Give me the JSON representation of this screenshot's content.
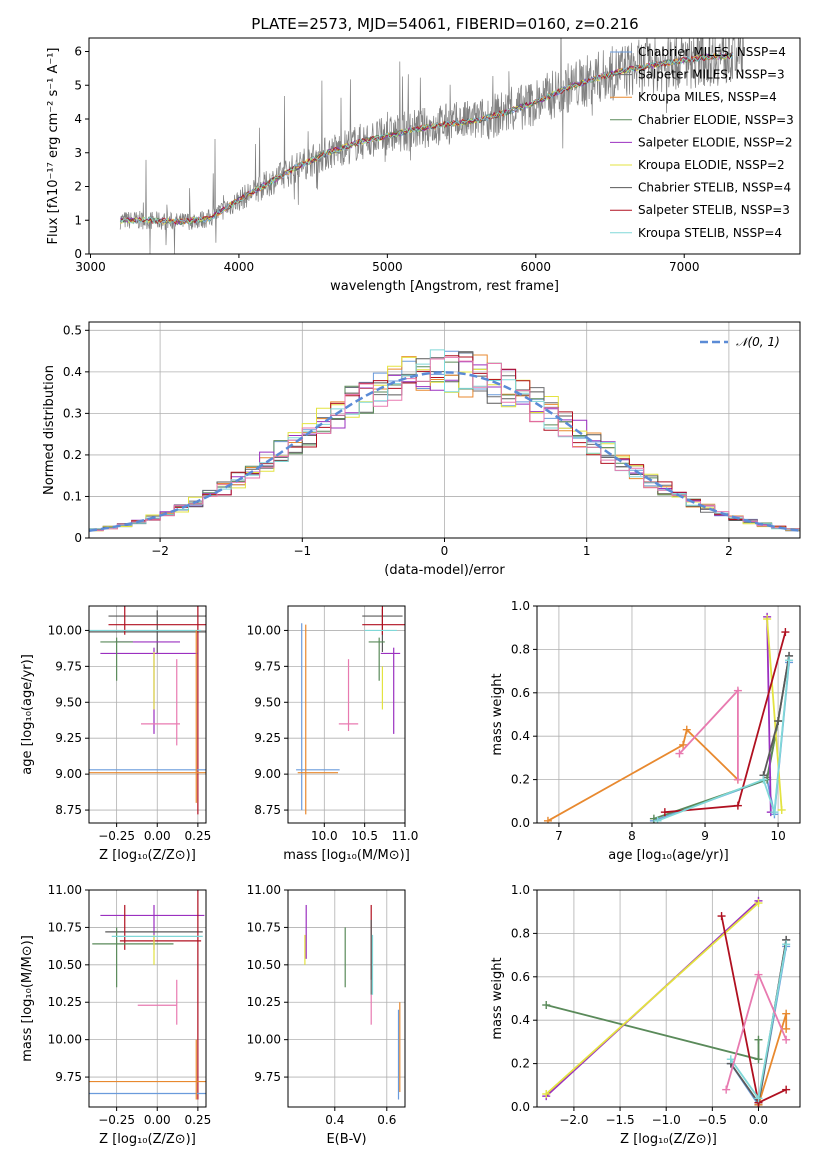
{
  "figure_title": "PLATE=2573, MJD=54061, FIBERID=0160, z=0.216",
  "colors": {
    "chabrier_miles": "#6a9bdc",
    "salpeter_miles": "#6d6e71",
    "kroupa_miles": "#e8892f",
    "chabrier_elodie": "#5a8a5a",
    "salpeter_elodie": "#9b30c0",
    "kroupa_elodie": "#e3e340",
    "chabrier_stelib": "#5a5a5a",
    "salpeter_stelib": "#b01020",
    "kroupa_stelib": "#80d8d8",
    "pink": "#e87ab0",
    "normal_curve": "#5b8bd6",
    "observed": "#808080",
    "grid": "#b0b0b0"
  },
  "chart_data": [
    {
      "id": "spectrum",
      "type": "line",
      "title": "PLATE=2573, MJD=54061, FIBERID=0160, z=0.216",
      "xlabel": "wavelength [Angstrom, rest frame]",
      "ylabel": "Flux [fλ10⁻¹⁷ erg cm⁻² s⁻¹ A⁻¹]",
      "xlim": [
        2990,
        7780
      ],
      "ylim": [
        0,
        6.4
      ],
      "xticks": [
        3000,
        4000,
        5000,
        6000,
        7000
      ],
      "yticks": [
        0,
        1,
        2,
        3,
        4,
        5,
        6
      ],
      "grid": false,
      "legend_position": "top-right",
      "legend": [
        "Chabrier MILES, N_SSP=4",
        "Salpeter MILES, N_SSP=3",
        "Kroupa MILES, N_SSP=4",
        "Chabrier ELODIE, N_SSP=3",
        "Salpeter ELODIE, N_SSP=2",
        "Kroupa ELODIE, N_SSP=2",
        "Chabrier STELIB, N_SSP=4",
        "Salpeter STELIB, N_SSP=3",
        "Kroupa STELIB, N_SSP=4"
      ],
      "continuum": {
        "x": [
          3200,
          3400,
          3600,
          3800,
          4000,
          4200,
          4400,
          4600,
          4800,
          5000,
          5200,
          5400,
          5600,
          5800,
          6000,
          6200,
          6400,
          6600,
          6800,
          7000,
          7200,
          7400
        ],
        "y": [
          1.0,
          1.0,
          0.95,
          1.05,
          1.6,
          2.1,
          2.6,
          3.0,
          3.3,
          3.5,
          3.7,
          3.85,
          3.95,
          4.2,
          4.5,
          4.9,
          5.2,
          5.45,
          5.6,
          5.75,
          5.85,
          5.9
        ]
      },
      "data_range": [
        3200,
        7400
      ]
    },
    {
      "id": "residual-histogram",
      "type": "line",
      "xlabel": "(data-model)/error",
      "ylabel": "Normed distribution",
      "xlim": [
        -2.5,
        2.5
      ],
      "ylim": [
        0,
        0.52
      ],
      "xticks": [
        -2,
        -1,
        0,
        1,
        2
      ],
      "yticks": [
        0.0,
        0.1,
        0.2,
        0.3,
        0.4,
        0.5
      ],
      "grid": true,
      "legend_position": "top-right",
      "legend": [
        "𝒩(0, 1)"
      ],
      "bin_width": 0.1
    },
    {
      "id": "age-vs-metallicity",
      "type": "scatter",
      "xlabel": "Z [log₁₀(Z/Z⊙)]",
      "ylabel": "age  [log₁₀(age/yr)]",
      "xlim": [
        -0.42,
        0.3
      ],
      "ylim": [
        8.66,
        10.17
      ],
      "xticks": [
        -0.25,
        0.0,
        0.25
      ],
      "xticklabels": [
        "−0.25",
        "0.00",
        "0.25"
      ],
      "yticks": [
        8.75,
        9.0,
        9.25,
        9.5,
        9.75,
        10.0
      ],
      "yticklabels": [
        "8.75",
        "9.00",
        "9.25",
        "9.50",
        "9.75",
        "10.00"
      ],
      "grid": true,
      "points": [
        {
          "x": 0.0,
          "y": 9.99,
          "xerr": 0.45,
          "yerr": 0.15,
          "color": "#5a5a5a"
        },
        {
          "x": 0.0,
          "y": 10.1,
          "xerr": 0.3,
          "yerr": 0.0,
          "color": "#5a5a5a"
        },
        {
          "x": 0.0,
          "y": 10.04,
          "xerr": 0.3,
          "yerr": 0.0,
          "color": "#b01020"
        },
        {
          "x": -0.2,
          "y": 10.07,
          "xerr": 0.0,
          "yerr": 0.1,
          "color": "#b01020"
        },
        {
          "x": 0.25,
          "y": 9.6,
          "xerr": 0.0,
          "yerr": 0.88,
          "color": "#b01020"
        },
        {
          "x": -0.08,
          "y": 10.0,
          "xerr": 0.35,
          "yerr": 0.0,
          "color": "#80d8d8"
        },
        {
          "x": -0.06,
          "y": 9.92,
          "xerr": 0.2,
          "yerr": 0.0,
          "color": "#9b30c0"
        },
        {
          "x": -0.05,
          "y": 9.84,
          "xerr": 0.3,
          "yerr": 0.0,
          "color": "#9b30c0"
        },
        {
          "x": -0.02,
          "y": 9.58,
          "xerr": 0.0,
          "yerr": 0.3,
          "color": "#9b30c0"
        },
        {
          "x": -0.25,
          "y": 9.8,
          "xerr": 0.0,
          "yerr": 0.15,
          "color": "#5a8a5a"
        },
        {
          "x": -0.25,
          "y": 9.92,
          "xerr": 0.1,
          "yerr": 0.0,
          "color": "#5a8a5a"
        },
        {
          "x": -0.02,
          "y": 9.65,
          "xerr": 0.0,
          "yerr": 0.2,
          "color": "#e3e340"
        },
        {
          "x": 0.02,
          "y": 9.35,
          "xerr": 0.12,
          "yerr": 0.0,
          "color": "#e87ab0"
        },
        {
          "x": 0.12,
          "y": 9.5,
          "xerr": 0.0,
          "yerr": 0.3,
          "color": "#e87ab0"
        },
        {
          "x": 0.0,
          "y": 9.03,
          "xerr": 0.42,
          "yerr": 0.0,
          "color": "#6a9bdc"
        },
        {
          "x": 0.0,
          "y": 9.01,
          "xerr": 0.42,
          "yerr": 0.0,
          "color": "#e8892f"
        },
        {
          "x": 0.24,
          "y": 9.4,
          "xerr": 0.0,
          "yerr": 0.6,
          "color": "#e8892f"
        }
      ]
    },
    {
      "id": "age-vs-mass",
      "type": "scatter",
      "xlabel": "mass [log₁₀(M/M⊙)]",
      "ylabel": "",
      "xlim": [
        9.55,
        11.0
      ],
      "ylim": [
        8.66,
        10.17
      ],
      "xticks": [
        10.0,
        10.5,
        11.0
      ],
      "xticklabels": [
        "10.0",
        "10.5",
        "11.0"
      ],
      "yticks": [
        8.75,
        9.0,
        9.25,
        9.5,
        9.75,
        10.0
      ],
      "yticklabels": [
        "8.75",
        "9.00",
        "9.25",
        "9.50",
        "9.75",
        "10.00"
      ],
      "grid": true,
      "points": [
        {
          "x": 10.72,
          "y": 10.1,
          "xerr": 0.25,
          "yerr": 0.0,
          "color": "#5a5a5a"
        },
        {
          "x": 10.72,
          "y": 10.0,
          "xerr": 0.0,
          "yerr": 0.15,
          "color": "#5a5a5a"
        },
        {
          "x": 10.75,
          "y": 10.04,
          "xerr": 0.28,
          "yerr": 0.0,
          "color": "#b01020"
        },
        {
          "x": 10.72,
          "y": 10.07,
          "xerr": 0.0,
          "yerr": 0.1,
          "color": "#b01020"
        },
        {
          "x": 10.7,
          "y": 10.0,
          "xerr": 0.2,
          "yerr": 0.0,
          "color": "#80d8d8"
        },
        {
          "x": 10.65,
          "y": 9.92,
          "xerr": 0.1,
          "yerr": 0.0,
          "color": "#5a8a5a"
        },
        {
          "x": 10.68,
          "y": 9.8,
          "xerr": 0.0,
          "yerr": 0.15,
          "color": "#5a8a5a"
        },
        {
          "x": 10.82,
          "y": 9.84,
          "xerr": 0.12,
          "yerr": 0.0,
          "color": "#9b30c0"
        },
        {
          "x": 10.86,
          "y": 9.58,
          "xerr": 0.0,
          "yerr": 0.3,
          "color": "#9b30c0"
        },
        {
          "x": 10.72,
          "y": 9.6,
          "xerr": 0.0,
          "yerr": 0.15,
          "color": "#e3e340"
        },
        {
          "x": 10.3,
          "y": 9.35,
          "xerr": 0.12,
          "yerr": 0.0,
          "color": "#e87ab0"
        },
        {
          "x": 10.3,
          "y": 9.55,
          "xerr": 0.0,
          "yerr": 0.25,
          "color": "#e87ab0"
        },
        {
          "x": 9.92,
          "y": 9.03,
          "xerr": 0.27,
          "yerr": 0.0,
          "color": "#6a9bdc"
        },
        {
          "x": 9.72,
          "y": 9.4,
          "xerr": 0.0,
          "yerr": 0.65,
          "color": "#6a9bdc"
        },
        {
          "x": 9.92,
          "y": 9.01,
          "xerr": 0.25,
          "yerr": 0.0,
          "color": "#e8892f"
        },
        {
          "x": 9.77,
          "y": 9.38,
          "xerr": 0.0,
          "yerr": 0.66,
          "color": "#e8892f"
        }
      ]
    },
    {
      "id": "mass-weight-vs-age",
      "type": "line",
      "xlabel": "age  [log₁₀(age/yr)]",
      "ylabel": "mass weight",
      "xlim": [
        6.7,
        10.3
      ],
      "ylim": [
        0,
        1.0
      ],
      "xticks": [
        7,
        8,
        9,
        10
      ],
      "xticklabels": [
        "7",
        "8",
        "9",
        "10"
      ],
      "yticks": [
        0.0,
        0.2,
        0.4,
        0.6,
        0.8,
        1.0
      ],
      "yticklabels": [
        "0.0",
        "0.2",
        "0.4",
        "0.6",
        "0.8",
        "1.0"
      ],
      "grid": true,
      "series": [
        {
          "color": "#6a9bdc",
          "x": [
            8.3,
            9.85,
            9.95,
            10.15
          ],
          "y": [
            0.01,
            0.2,
            0.04,
            0.74
          ]
        },
        {
          "color": "#6d6e71",
          "x": [
            9.85,
            10.0,
            10.15
          ],
          "y": [
            0.21,
            0.47,
            0.77
          ]
        },
        {
          "color": "#e8892f",
          "x": [
            6.85,
            8.7,
            8.75,
            9.45
          ],
          "y": [
            0.01,
            0.36,
            0.43,
            0.2
          ]
        },
        {
          "color": "#5a8a5a",
          "x": [
            8.3,
            9.85,
            10.0
          ],
          "y": [
            0.02,
            0.2,
            0.47
          ]
        },
        {
          "color": "#9b30c0",
          "x": [
            9.85,
            9.9
          ],
          "y": [
            0.95,
            0.05
          ]
        },
        {
          "color": "#e3e340",
          "x": [
            9.85,
            10.05
          ],
          "y": [
            0.94,
            0.06
          ]
        },
        {
          "color": "#5a5a5a",
          "x": [
            9.8,
            10.0,
            10.15
          ],
          "y": [
            0.22,
            0.47,
            0.77
          ]
        },
        {
          "color": "#b01020",
          "x": [
            8.45,
            9.45,
            10.1
          ],
          "y": [
            0.05,
            0.08,
            0.88
          ]
        },
        {
          "color": "#80d8d8",
          "x": [
            8.35,
            9.8,
            9.95,
            10.15
          ],
          "y": [
            0.01,
            0.2,
            0.05,
            0.75
          ]
        },
        {
          "color": "#e87ab0",
          "x": [
            8.65,
            9.45,
            9.45
          ],
          "y": [
            0.32,
            0.61,
            0.2
          ]
        }
      ]
    },
    {
      "id": "mass-vs-metallicity",
      "type": "scatter",
      "xlabel": "Z [log₁₀(Z/Z⊙)]",
      "ylabel": "mass [log₁₀(M/M⊙)]",
      "xlim": [
        -0.42,
        0.3
      ],
      "ylim": [
        9.55,
        11.0
      ],
      "xticks": [
        -0.25,
        0.0,
        0.25
      ],
      "xticklabels": [
        "−0.25",
        "0.00",
        "0.25"
      ],
      "yticks": [
        9.75,
        10.0,
        10.25,
        10.5,
        10.75,
        11.0
      ],
      "yticklabels": [
        "9.75",
        "10.00",
        "10.25",
        "10.50",
        "10.75",
        "11.00"
      ],
      "grid": true,
      "points": [
        {
          "x": -0.03,
          "y": 10.83,
          "xerr": 0.32,
          "yerr": 0.0,
          "color": "#9b30c0"
        },
        {
          "x": -0.02,
          "y": 10.75,
          "xerr": 0.0,
          "yerr": 0.15,
          "color": "#9b30c0"
        },
        {
          "x": -0.02,
          "y": 10.72,
          "xerr": 0.3,
          "yerr": 0.0,
          "color": "#5a5a5a"
        },
        {
          "x": -0.2,
          "y": 10.75,
          "xerr": 0.0,
          "yerr": 0.15,
          "color": "#b01020"
        },
        {
          "x": 0.02,
          "y": 10.66,
          "xerr": 0.25,
          "yerr": 0.0,
          "color": "#b01020"
        },
        {
          "x": 0.25,
          "y": 10.3,
          "xerr": 0.0,
          "yerr": 0.7,
          "color": "#b01020"
        },
        {
          "x": -0.15,
          "y": 10.64,
          "xerr": 0.25,
          "yerr": 0.0,
          "color": "#5a8a5a"
        },
        {
          "x": -0.25,
          "y": 10.55,
          "xerr": 0.0,
          "yerr": 0.2,
          "color": "#5a8a5a"
        },
        {
          "x": -0.02,
          "y": 10.6,
          "xerr": 0.0,
          "yerr": 0.1,
          "color": "#e3e340"
        },
        {
          "x": 0.0,
          "y": 10.69,
          "xerr": 0.28,
          "yerr": 0.0,
          "color": "#80d8d8"
        },
        {
          "x": 0.0,
          "y": 10.23,
          "xerr": 0.12,
          "yerr": 0.0,
          "color": "#e87ab0"
        },
        {
          "x": 0.12,
          "y": 10.25,
          "xerr": 0.0,
          "yerr": 0.15,
          "color": "#e87ab0"
        },
        {
          "x": 0.0,
          "y": 9.72,
          "xerr": 0.42,
          "yerr": 0.0,
          "color": "#e8892f"
        },
        {
          "x": 0.0,
          "y": 9.64,
          "xerr": 0.42,
          "yerr": 0.0,
          "color": "#6a9bdc"
        },
        {
          "x": 0.24,
          "y": 9.8,
          "xerr": 0.0,
          "yerr": 0.2,
          "color": "#e8892f"
        }
      ]
    },
    {
      "id": "mass-vs-ebv",
      "type": "scatter",
      "xlabel": "E(B-V)",
      "ylabel": "",
      "xlim": [
        0.22,
        0.67
      ],
      "ylim": [
        9.55,
        11.0
      ],
      "xticks": [
        0.4,
        0.6
      ],
      "xticklabels": [
        "0.4",
        "0.6"
      ],
      "yticks": [
        9.75,
        10.0,
        10.25,
        10.5,
        10.75,
        11.0
      ],
      "yticklabels": [
        "9.75",
        "10.00",
        "10.25",
        "10.50",
        "10.75",
        "11.00"
      ],
      "grid": true,
      "points": [
        {
          "x": 0.29,
          "y": 10.72,
          "xerr": 0.0,
          "yerr": 0.18,
          "color": "#9b30c0"
        },
        {
          "x": 0.285,
          "y": 10.6,
          "xerr": 0.0,
          "yerr": 0.1,
          "color": "#e3e340"
        },
        {
          "x": 0.44,
          "y": 10.55,
          "xerr": 0.0,
          "yerr": 0.2,
          "color": "#5a8a5a"
        },
        {
          "x": 0.54,
          "y": 10.65,
          "xerr": 0.0,
          "yerr": 0.25,
          "color": "#b01020"
        },
        {
          "x": 0.54,
          "y": 10.55,
          "xerr": 0.0,
          "yerr": 0.25,
          "color": "#5a5a5a"
        },
        {
          "x": 0.545,
          "y": 10.5,
          "xerr": 0.0,
          "yerr": 0.2,
          "color": "#80d8d8"
        },
        {
          "x": 0.54,
          "y": 10.2,
          "xerr": 0.0,
          "yerr": 0.1,
          "color": "#e87ab0"
        },
        {
          "x": 0.65,
          "y": 9.95,
          "xerr": 0.0,
          "yerr": 0.3,
          "color": "#e8892f"
        },
        {
          "x": 0.645,
          "y": 9.9,
          "xerr": 0.0,
          "yerr": 0.3,
          "color": "#6a9bdc"
        }
      ]
    },
    {
      "id": "mass-weight-vs-metallicity",
      "type": "line",
      "xlabel": "Z [log₁₀(Z/Z⊙)]",
      "ylabel": "mass weight",
      "xlim": [
        -2.4,
        0.45
      ],
      "ylim": [
        0,
        1.0
      ],
      "xticks": [
        -2.0,
        -1.5,
        -1.0,
        -0.5,
        0.0
      ],
      "xticklabels": [
        "−2.0",
        "−1.5",
        "−1.0",
        "−0.5",
        "0.0"
      ],
      "yticks": [
        0.0,
        0.2,
        0.4,
        0.6,
        0.8,
        1.0
      ],
      "yticklabels": [
        "0.0",
        "0.2",
        "0.4",
        "0.6",
        "0.8",
        "1.0"
      ],
      "grid": true,
      "series": [
        {
          "color": "#6a9bdc",
          "x": [
            -0.3,
            0.0,
            0.3
          ],
          "y": [
            0.2,
            0.01,
            0.74
          ]
        },
        {
          "color": "#6d6e71",
          "x": [
            0.0,
            0.3
          ],
          "y": [
            0.01,
            0.77
          ]
        },
        {
          "color": "#e8892f",
          "x": [
            0.0,
            0.3,
            0.3
          ],
          "y": [
            0.01,
            0.43,
            0.36
          ]
        },
        {
          "color": "#5a8a5a",
          "x": [
            -2.3,
            0.0,
            0.0
          ],
          "y": [
            0.47,
            0.22,
            0.31
          ]
        },
        {
          "color": "#9b30c0",
          "x": [
            -2.3,
            0.0
          ],
          "y": [
            0.05,
            0.95
          ]
        },
        {
          "color": "#e3e340",
          "x": [
            -2.3,
            0.0
          ],
          "y": [
            0.06,
            0.94
          ]
        },
        {
          "color": "#5a5a5a",
          "x": [
            -0.3,
            0.0,
            0.3
          ],
          "y": [
            0.2,
            0.02,
            0.77
          ]
        },
        {
          "color": "#b01020",
          "x": [
            -0.4,
            0.0,
            0.3
          ],
          "y": [
            0.88,
            0.02,
            0.08
          ]
        },
        {
          "color": "#80d8d8",
          "x": [
            -0.3,
            0.0,
            0.3
          ],
          "y": [
            0.22,
            0.04,
            0.75
          ]
        },
        {
          "color": "#e87ab0",
          "x": [
            -0.35,
            0.0,
            0.3
          ],
          "y": [
            0.08,
            0.61,
            0.31
          ]
        }
      ]
    }
  ]
}
